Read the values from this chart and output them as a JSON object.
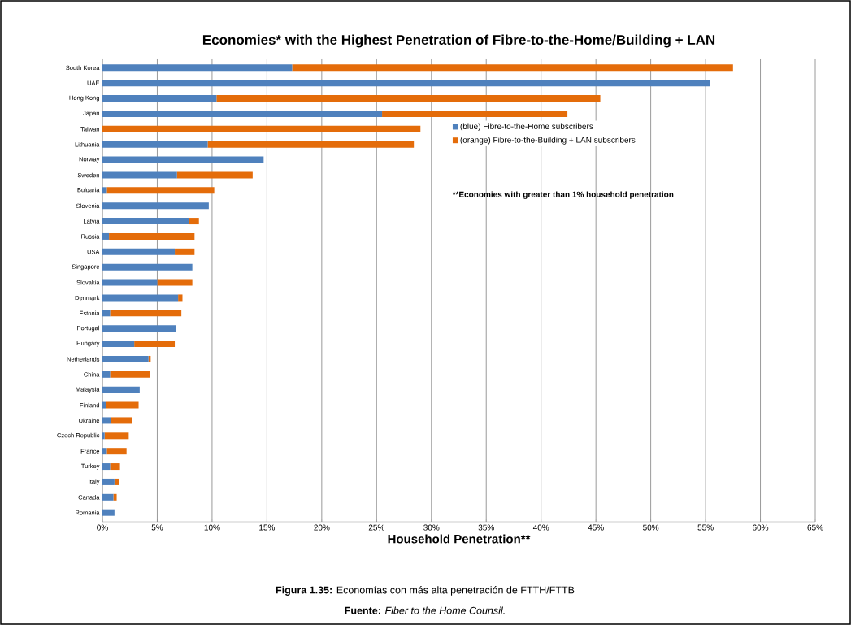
{
  "chart_data": {
    "type": "bar",
    "orientation": "horizontal",
    "stacked": true,
    "title": "Economies* with the Highest Penetration of Fibre-to-the-Home/Building + LAN",
    "xlabel": "Household Penetration**",
    "categories": [
      "South Korea",
      "UAE",
      "Hong Kong",
      "Japan",
      "Taiwan",
      "Lithuania",
      "Norway",
      "Sweden",
      "Bulgaria",
      "Slovenia",
      "Latvia",
      "Russia",
      "USA",
      "Singapore",
      "Slovakia",
      "Denmark",
      "Estonia",
      "Portugal",
      "Hungary",
      "Netherlands",
      "China",
      "Malaysia",
      "Finland",
      "Ukraine",
      "Czech Republic",
      "France",
      "Turkey",
      "Italy",
      "Canada",
      "Romania"
    ],
    "series": [
      {
        "name": "(blue) Fibre-to-the-Home subscribers",
        "color": "#4f81bd",
        "values": [
          17.3,
          55.4,
          10.4,
          25.5,
          null,
          9.6,
          14.7,
          6.8,
          0.4,
          9.7,
          7.9,
          0.6,
          6.6,
          8.2,
          5.0,
          6.9,
          0.7,
          6.7,
          2.9,
          4.2,
          0.7,
          3.4,
          0.3,
          0.8,
          0.2,
          0.4,
          0.7,
          1.1,
          1.0,
          1.1
        ]
      },
      {
        "name": "(orange) Fibre-to-the-Building + LAN subscribers",
        "color": "#e46c0a",
        "values": [
          40.2,
          null,
          35.0,
          16.9,
          29.0,
          18.8,
          null,
          6.9,
          9.8,
          null,
          0.9,
          7.8,
          1.8,
          null,
          3.2,
          0.4,
          6.5,
          null,
          3.7,
          0.2,
          3.6,
          null,
          3.0,
          1.9,
          2.2,
          1.8,
          0.9,
          0.4,
          0.3,
          null
        ]
      }
    ],
    "xlim": [
      0,
      65
    ],
    "xticks": [
      {
        "value": 0,
        "label": "0%"
      },
      {
        "value": 5,
        "label": "5%"
      },
      {
        "value": 10,
        "label": "10%"
      },
      {
        "value": 15,
        "label": "15%"
      },
      {
        "value": 20,
        "label": "20%"
      },
      {
        "value": 25,
        "label": "25%"
      },
      {
        "value": 30,
        "label": "30%"
      },
      {
        "value": 35,
        "label": "35%"
      },
      {
        "value": 40,
        "label": "40%"
      },
      {
        "value": 45,
        "label": "45%"
      },
      {
        "value": 50,
        "label": "50%"
      },
      {
        "value": 55,
        "label": "55%"
      },
      {
        "value": 60,
        "label": "60%"
      },
      {
        "value": 65,
        "label": "65%"
      }
    ],
    "grid": "x",
    "legend": "right",
    "annotations": [
      "**Economies with greater than 1% household penetration",
      "**Figura 1.35:** Economías con más alta penetración de FTTH/FTTB",
      "**Fuente:** *Fiber to the Home Counsil.*"
    ]
  }
}
